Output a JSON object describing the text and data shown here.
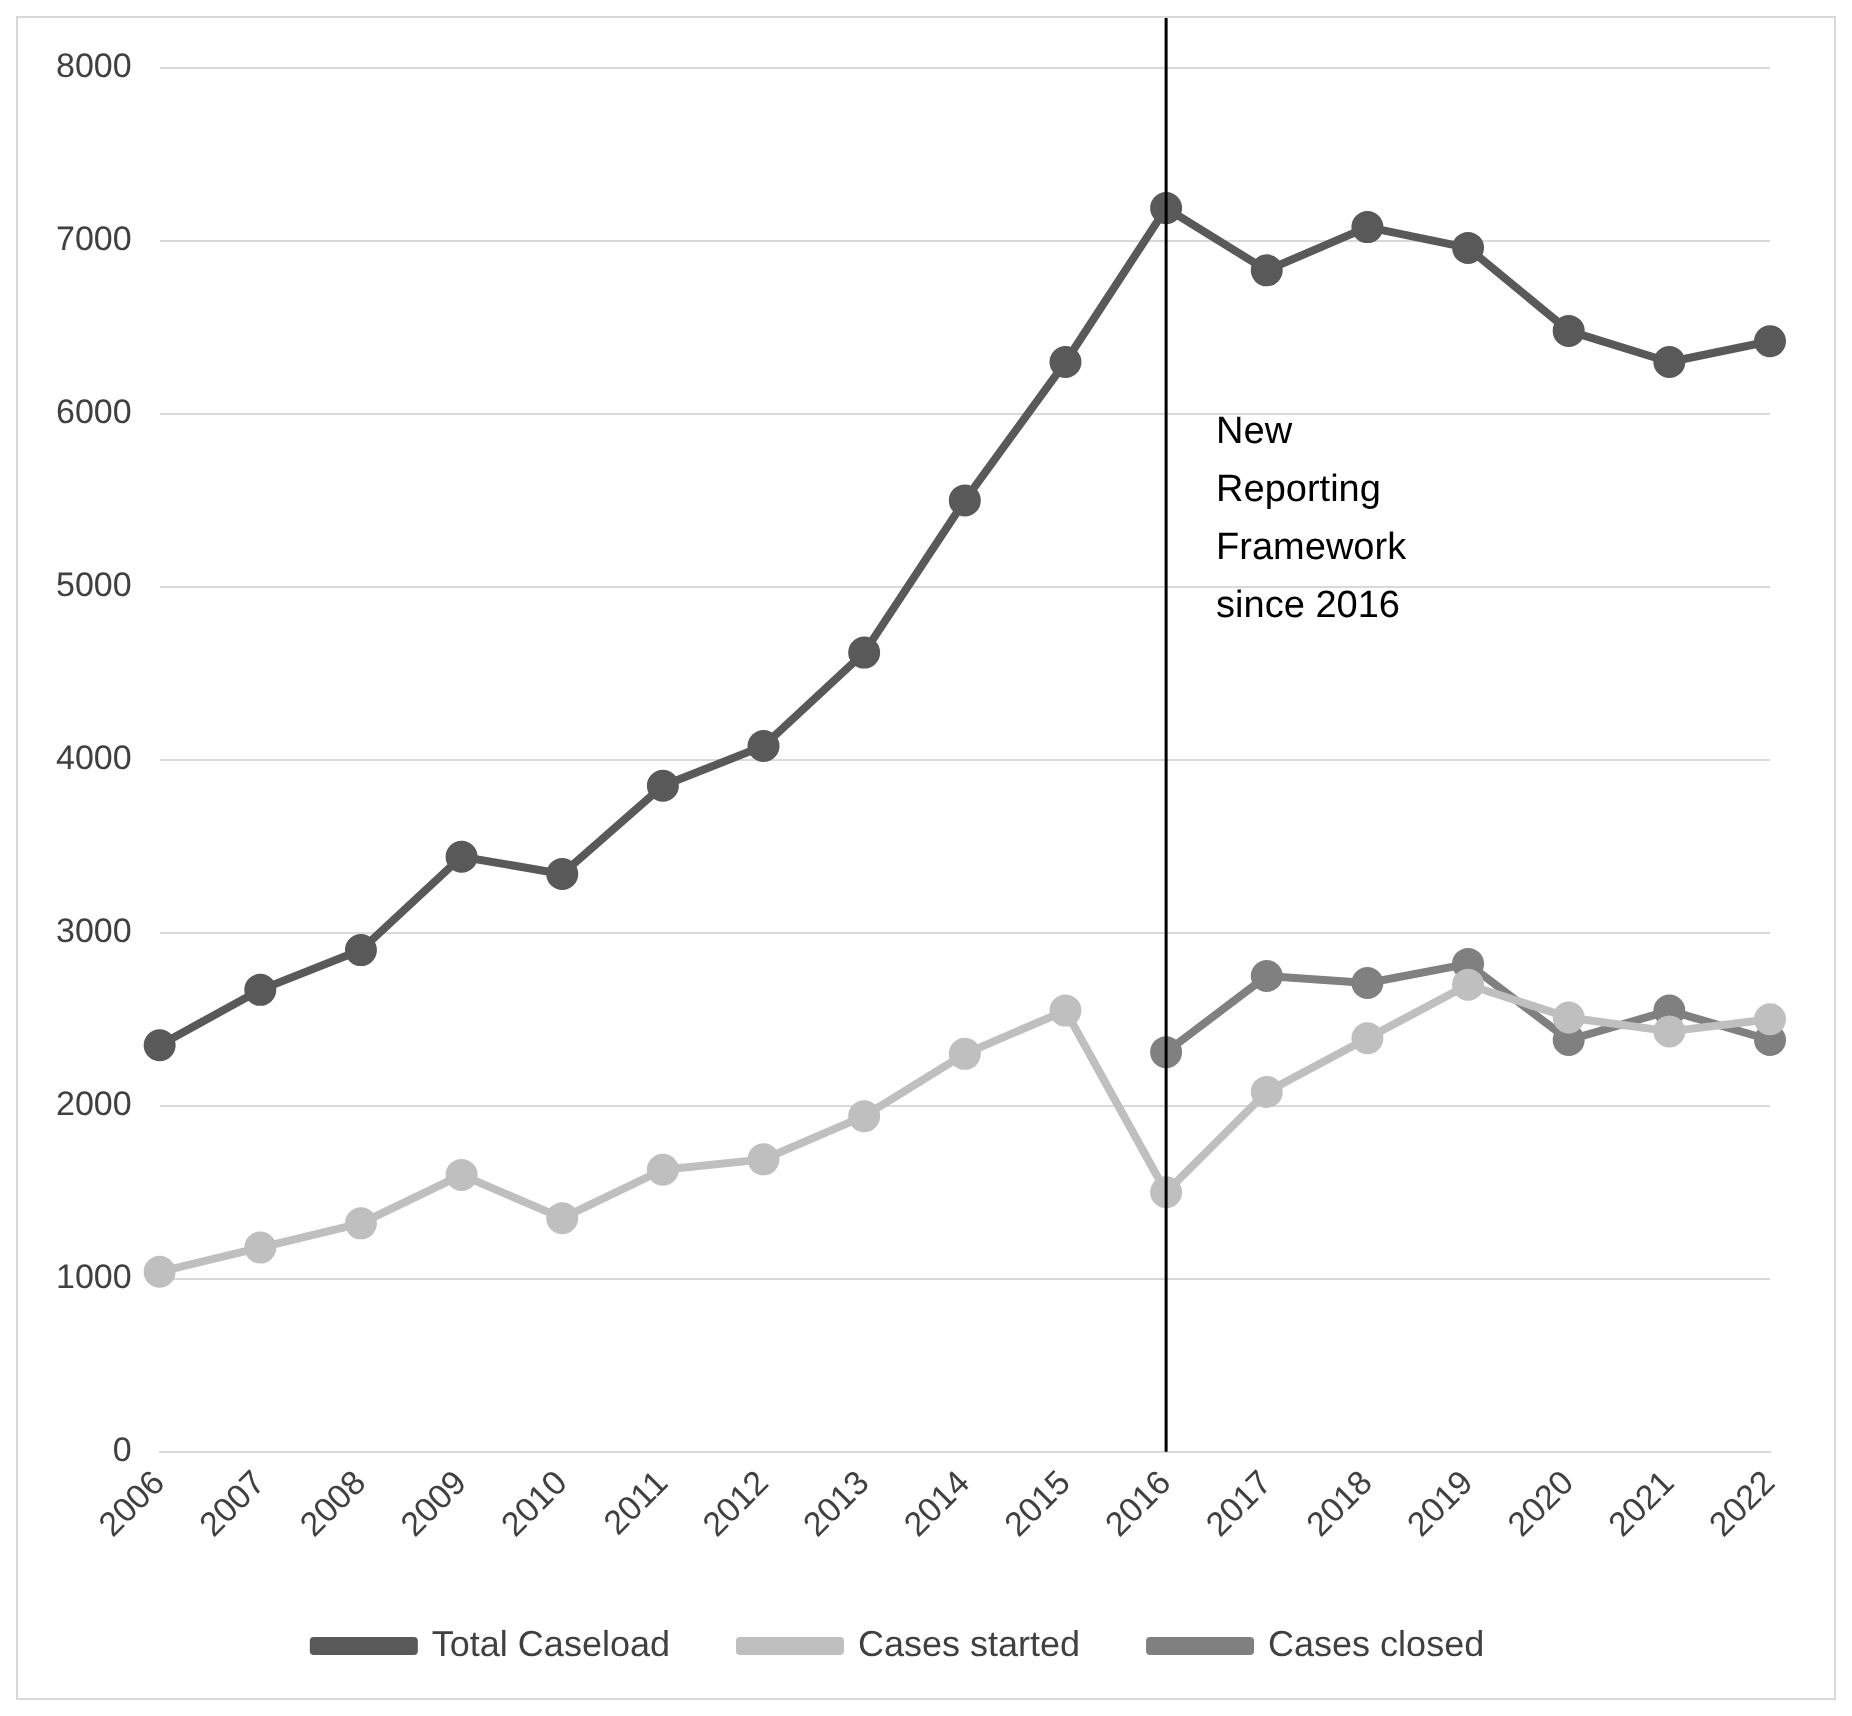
{
  "chart_data": {
    "type": "line",
    "categories": [
      "2006",
      "2007",
      "2008",
      "2009",
      "2010",
      "2011",
      "2012",
      "2013",
      "2014",
      "2015",
      "2016",
      "2017",
      "2018",
      "2019",
      "2020",
      "2021",
      "2022"
    ],
    "series": [
      {
        "name": "Total Caseload",
        "color": "#595959",
        "values": [
          2350,
          2670,
          2900,
          3440,
          3340,
          3850,
          4080,
          4620,
          5500,
          6300,
          7190,
          6830,
          7080,
          6960,
          6480,
          6300,
          6420
        ]
      },
      {
        "name": "Cases started",
        "color": "#bfbfbf",
        "values": [
          1040,
          1180,
          1320,
          1600,
          1350,
          1630,
          1690,
          1940,
          2300,
          2550,
          1500,
          2080,
          2390,
          2700,
          2510,
          2430,
          2500
        ]
      },
      {
        "name": "Cases closed",
        "color": "#808080",
        "values": [
          null,
          null,
          null,
          null,
          null,
          null,
          null,
          null,
          null,
          null,
          2310,
          2750,
          2710,
          2820,
          2380,
          2550,
          2380
        ]
      }
    ],
    "ylim": [
      0,
      8000
    ],
    "yticks": [
      0,
      1000,
      2000,
      3000,
      4000,
      5000,
      6000,
      7000,
      8000
    ],
    "grid": "y",
    "legend": "bottom",
    "marker": "circle",
    "line_style": "solid",
    "ref_lines": [
      {
        "axis": "x",
        "value": "2016",
        "label": "New Reporting Framework since 2016",
        "color": "#000000"
      }
    ]
  }
}
